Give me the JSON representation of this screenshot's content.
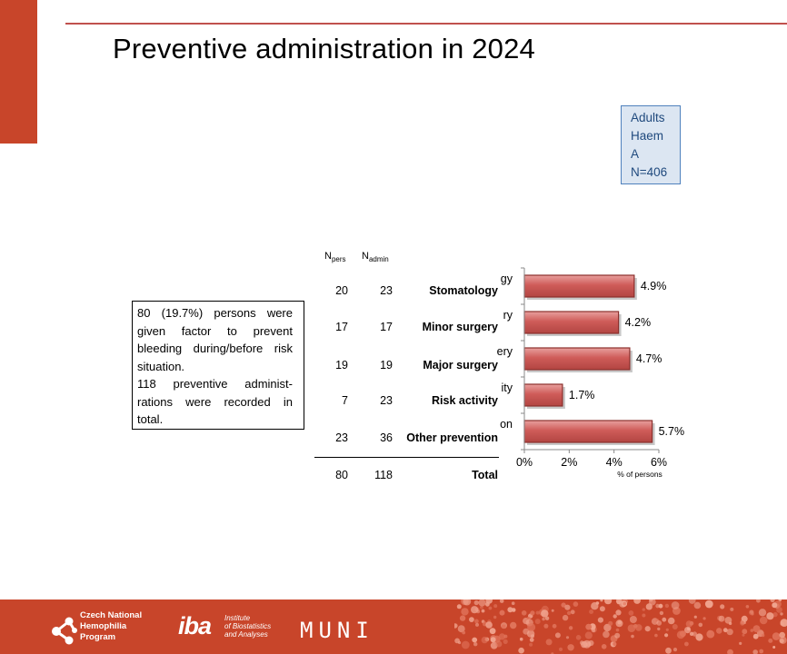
{
  "title": "Preventive administration in 2024",
  "legend_box": [
    "Adults",
    "Haem",
    "A",
    "N=406"
  ],
  "note": {
    "line1": "80 (19.7%) persons were given factor to prevent bleeding during/before risk situation.",
    "line2": "118 preventive administ-rations were recorded in total."
  },
  "table": {
    "npers_main": "N",
    "npers_sub": "pers",
    "nadmin_main": "N",
    "nadmin_sub": "admin",
    "rows": [
      {
        "npers": "20",
        "nadmin": "23",
        "label": "Stomatology"
      },
      {
        "npers": "17",
        "nadmin": "17",
        "label": "Minor surgery"
      },
      {
        "npers": "19",
        "nadmin": "19",
        "label": "Major surgery"
      },
      {
        "npers": "7",
        "nadmin": "23",
        "label": "Risk activity"
      },
      {
        "npers": "23",
        "nadmin": "36",
        "label": "Other prevention"
      }
    ],
    "total": {
      "npers": "80",
      "nadmin": "118",
      "label": "Total"
    }
  },
  "chart_data": {
    "type": "bar",
    "orientation": "horizontal",
    "categories": [
      "Stomatology",
      "Minor surgery",
      "Major surgery",
      "Risk activity",
      "Other prevention"
    ],
    "values": [
      4.9,
      4.2,
      4.7,
      1.7,
      5.7
    ],
    "data_labels": [
      "4.9%",
      "4.2%",
      "4.7%",
      "1.7%",
      "5.7%"
    ],
    "partial_tick_labels": [
      "gy",
      "ry",
      "ery",
      "ity",
      "on"
    ],
    "xticks": [
      "0%",
      "2%",
      "4%",
      "6%"
    ],
    "xlim": [
      0,
      6
    ],
    "xlabel": "% of persons",
    "bar_color": "#c0504d",
    "grid": false
  },
  "footer": {
    "color": "#c8452a",
    "czech_lines": [
      "Czech National",
      "Hemophilia",
      "Program"
    ],
    "iba_mark": "iba",
    "iba_lines": [
      "Institute",
      "of Biostatistics",
      "and Analyses"
    ],
    "muni": "MUNI"
  }
}
